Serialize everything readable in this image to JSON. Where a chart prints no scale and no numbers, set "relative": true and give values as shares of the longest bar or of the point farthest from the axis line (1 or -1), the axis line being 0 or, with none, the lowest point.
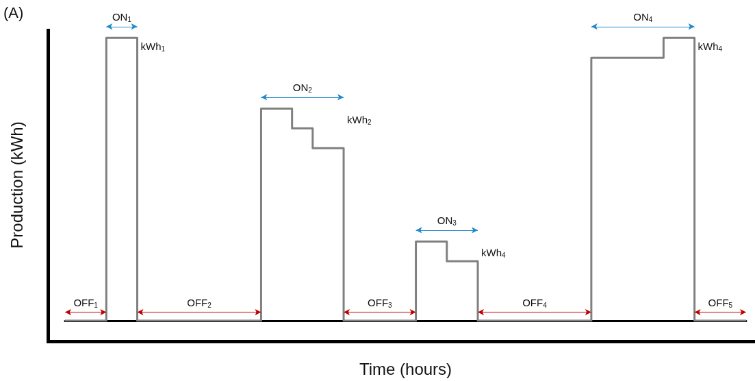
{
  "chart_data": {
    "type": "step",
    "relative": true,
    "title": "(A)",
    "xlabel": "Time (hours)",
    "ylabel": "Production (kWh)",
    "categories": [
      null,
      null,
      null,
      null,
      null,
      null,
      null,
      null,
      null,
      null,
      null,
      null,
      null,
      null,
      null,
      null,
      null,
      null,
      null,
      null,
      null,
      null,
      null,
      null,
      null,
      null,
      null,
      null,
      null,
      null,
      null,
      null,
      null,
      null,
      null,
      null,
      null,
      null,
      null,
      null,
      null,
      null,
      null,
      null,
      null,
      null,
      null,
      null,
      null,
      null,
      null,
      null,
      null,
      null,
      null,
      null,
      null,
      null,
      null,
      null,
      null,
      null,
      null,
      null,
      null,
      null,
      null
    ],
    "series": [
      {
        "color": "#808080",
        "values": [
          0,
          0,
          0,
          0,
          1,
          1,
          1,
          0,
          0,
          0,
          0,
          0,
          0,
          0,
          0,
          0,
          0,
          0,
          0,
          0.75,
          0.75,
          0.75,
          0.68,
          0.68,
          0.61,
          0.61,
          0.61,
          0,
          0,
          0,
          0,
          0,
          0,
          0,
          0.28,
          0.28,
          0.28,
          0.21,
          0.21,
          0.21,
          0,
          0,
          0,
          0,
          0,
          0,
          0,
          0,
          0,
          0,
          0,
          0.93,
          0.93,
          0.93,
          0.93,
          0.93,
          0.93,
          0.93,
          1,
          1,
          1,
          0,
          0,
          0,
          0,
          0,
          0
        ]
      }
    ],
    "annotations": [
      "OFF$_{1}$",
      "ON$_{1}$",
      "kWh$_{1}$",
      "OFF$_{2}$",
      "ON$_{2}$",
      "kWh$_{2}$",
      "OFF$_{3}$",
      "ON$_{3}$",
      "kWh$_{4}$",
      "OFF$_{4}$",
      "ON$_{4}$",
      "kWh$_{4}$",
      "OFF$_{5}$"
    ]
  }
}
